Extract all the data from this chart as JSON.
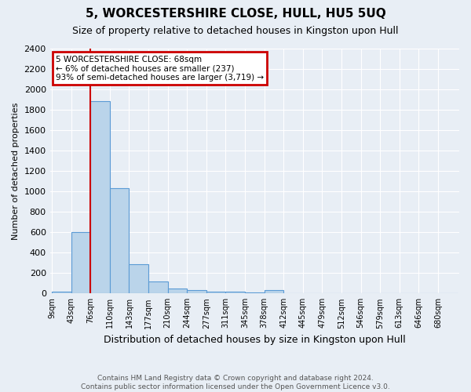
{
  "title": "5, WORCESTERSHIRE CLOSE, HULL, HU5 5UQ",
  "subtitle": "Size of property relative to detached houses in Kingston upon Hull",
  "xlabel": "Distribution of detached houses by size in Kingston upon Hull",
  "ylabel": "Number of detached properties",
  "footnote": "Contains HM Land Registry data © Crown copyright and database right 2024.\nContains public sector information licensed under the Open Government Licence v3.0.",
  "bin_labels": [
    "9sqm",
    "43sqm",
    "76sqm",
    "110sqm",
    "143sqm",
    "177sqm",
    "210sqm",
    "244sqm",
    "277sqm",
    "311sqm",
    "345sqm",
    "378sqm",
    "412sqm",
    "445sqm",
    "479sqm",
    "512sqm",
    "546sqm",
    "579sqm",
    "613sqm",
    "646sqm",
    "680sqm"
  ],
  "bin_centers": [
    0,
    1,
    2,
    3,
    4,
    5,
    6,
    7,
    8,
    9,
    10,
    11,
    12,
    13,
    14,
    15,
    16,
    17,
    18,
    19,
    20
  ],
  "bar_heights": [
    20,
    600,
    1880,
    1030,
    290,
    115,
    50,
    30,
    20,
    15,
    10,
    30,
    5,
    5,
    5,
    5,
    5,
    5,
    5,
    5,
    0
  ],
  "bar_color": "#bad4ea",
  "bar_edge_color": "#5b9bd5",
  "background_color": "#e8eef5",
  "red_line_bin": 2,
  "annotation_title": "5 WORCESTERSHIRE CLOSE: 68sqm",
  "annotation_line1": "← 6% of detached houses are smaller (237)",
  "annotation_line2": "93% of semi-detached houses are larger (3,719) →",
  "annotation_box_color": "#cc0000",
  "ylim": [
    0,
    2400
  ],
  "yticks": [
    0,
    200,
    400,
    600,
    800,
    1000,
    1200,
    1400,
    1600,
    1800,
    2000,
    2200,
    2400
  ],
  "title_fontsize": 11,
  "subtitle_fontsize": 9,
  "ylabel_fontsize": 8,
  "xlabel_fontsize": 9,
  "ytick_fontsize": 8,
  "xtick_fontsize": 7
}
